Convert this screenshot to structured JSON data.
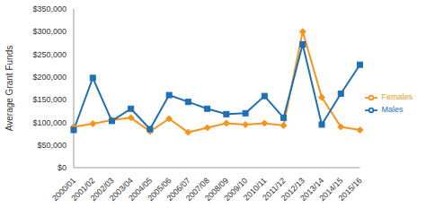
{
  "chart_data": {
    "type": "line",
    "y_label": "Average Grant Funds",
    "categories": [
      "2000/01",
      "2001/02",
      "2002/03",
      "2003/04",
      "2004/05",
      "2005/06",
      "2006/07",
      "2007/08",
      "2008/09",
      "2009/10",
      "2010/11",
      "2011/12",
      "2012/13",
      "2013/14",
      "2014/15",
      "2015/16"
    ],
    "series": [
      {
        "name": "Females",
        "color": "#f7941d",
        "marker": "diamond",
        "values": [
          90000,
          97000,
          105000,
          110000,
          80000,
          108000,
          78000,
          88000,
          98000,
          95000,
          98000,
          93000,
          300000,
          155000,
          90000,
          83000
        ]
      },
      {
        "name": "Males",
        "color": "#1f6fb5",
        "marker": "square",
        "values": [
          83000,
          198000,
          103000,
          130000,
          85000,
          160000,
          145000,
          130000,
          118000,
          120000,
          158000,
          110000,
          272000,
          95000,
          163000,
          227000
        ]
      }
    ],
    "ylim": [
      0,
      350000
    ],
    "yticks": [
      {
        "value": 0,
        "label": "$0"
      },
      {
        "value": 50000,
        "label": "$50,000"
      },
      {
        "value": 100000,
        "label": "$100,000"
      },
      {
        "value": 150000,
        "label": "$150,000"
      },
      {
        "value": 200000,
        "label": "$200,000"
      },
      {
        "value": 250000,
        "label": "$250,000"
      },
      {
        "value": 300000,
        "label": "$300,000"
      },
      {
        "value": 350000,
        "label": "$350,000"
      }
    ],
    "grid": false,
    "legend": "right"
  }
}
